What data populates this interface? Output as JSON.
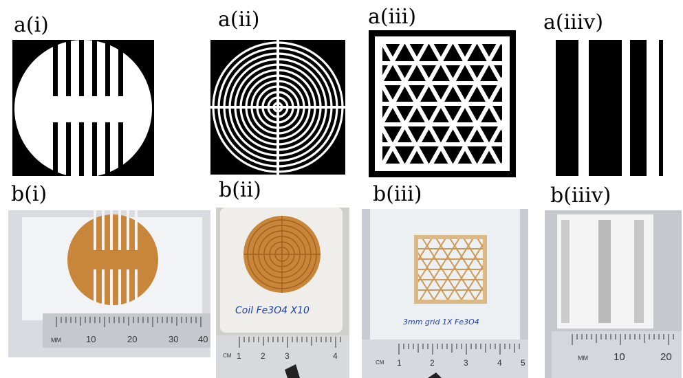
{
  "labels": {
    "a1": "a(i)",
    "a2": "a(ii)",
    "a3": "a(iii)",
    "a4": "a(iiiv)",
    "b1": "b(i)",
    "b2": "b(ii)",
    "b3": "b(iii)",
    "b4": "b(iiiv)"
  },
  "photos": {
    "b1": {
      "ruler_unit": "MM",
      "ruler_numbers": [
        "10",
        "20",
        "30",
        "40"
      ]
    },
    "b2": {
      "handwriting": "Coil Fe3O4 X10",
      "ruler_unit": "CM",
      "ruler_numbers": [
        "1",
        "2",
        "3",
        "4"
      ]
    },
    "b3": {
      "handwriting": "3mm grid 1X Fe3O4",
      "ruler_unit": "CM",
      "ruler_numbers": [
        "1",
        "2",
        "3",
        "4",
        "5"
      ]
    },
    "b4": {
      "ruler_unit": "MM",
      "ruler_numbers": [
        "10",
        "20"
      ]
    }
  },
  "colors": {
    "ink": "#000000",
    "paper": "#ffffff",
    "ferrofluid": "#c8863a",
    "ferrofluid_dark": "#a25f1c",
    "pencil": "#8a8a8a",
    "handwriting": "#1b3fa8"
  }
}
